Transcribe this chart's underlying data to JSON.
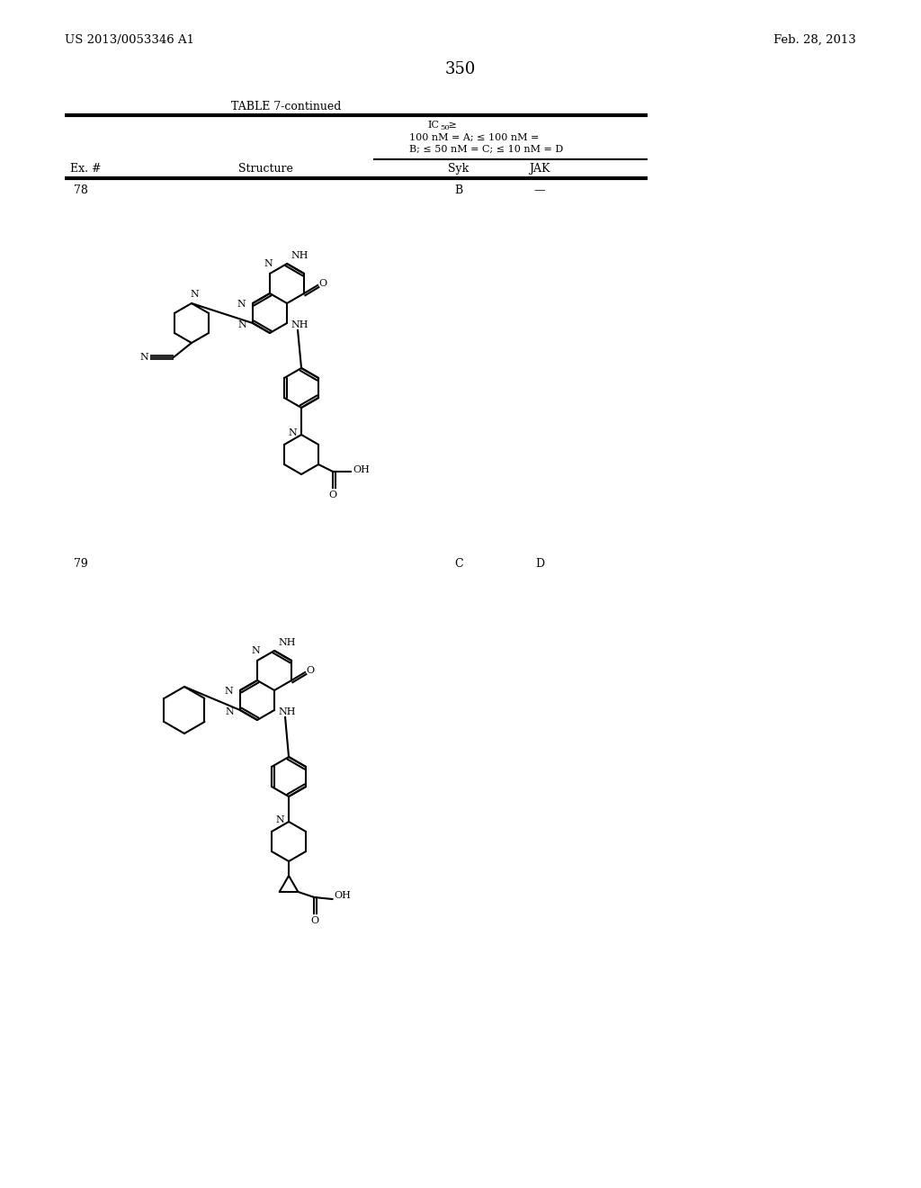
{
  "patent_number": "US 2013/0053346 A1",
  "patent_date": "Feb. 28, 2013",
  "page_number": "350",
  "table_title": "TABLE 7-continued",
  "ic50_line1": "IC",
  "ic50_sub": "50",
  "ic50_line1b": " ≥",
  "ic50_line2": "100 nM = A; ≤ 100 nM =",
  "ic50_line3": "B; ≤ 50 nM = C; ≤ 10 nM = D",
  "col_ex": "Ex. #",
  "col_structure": "Structure",
  "col_syk": "Syk",
  "col_jak": "JAK",
  "row78_ex": "78",
  "row78_syk": "B",
  "row78_jak": "—",
  "row79_ex": "79",
  "row79_syk": "C",
  "row79_jak": "D",
  "bg_color": "#ffffff",
  "text_color": "#000000"
}
